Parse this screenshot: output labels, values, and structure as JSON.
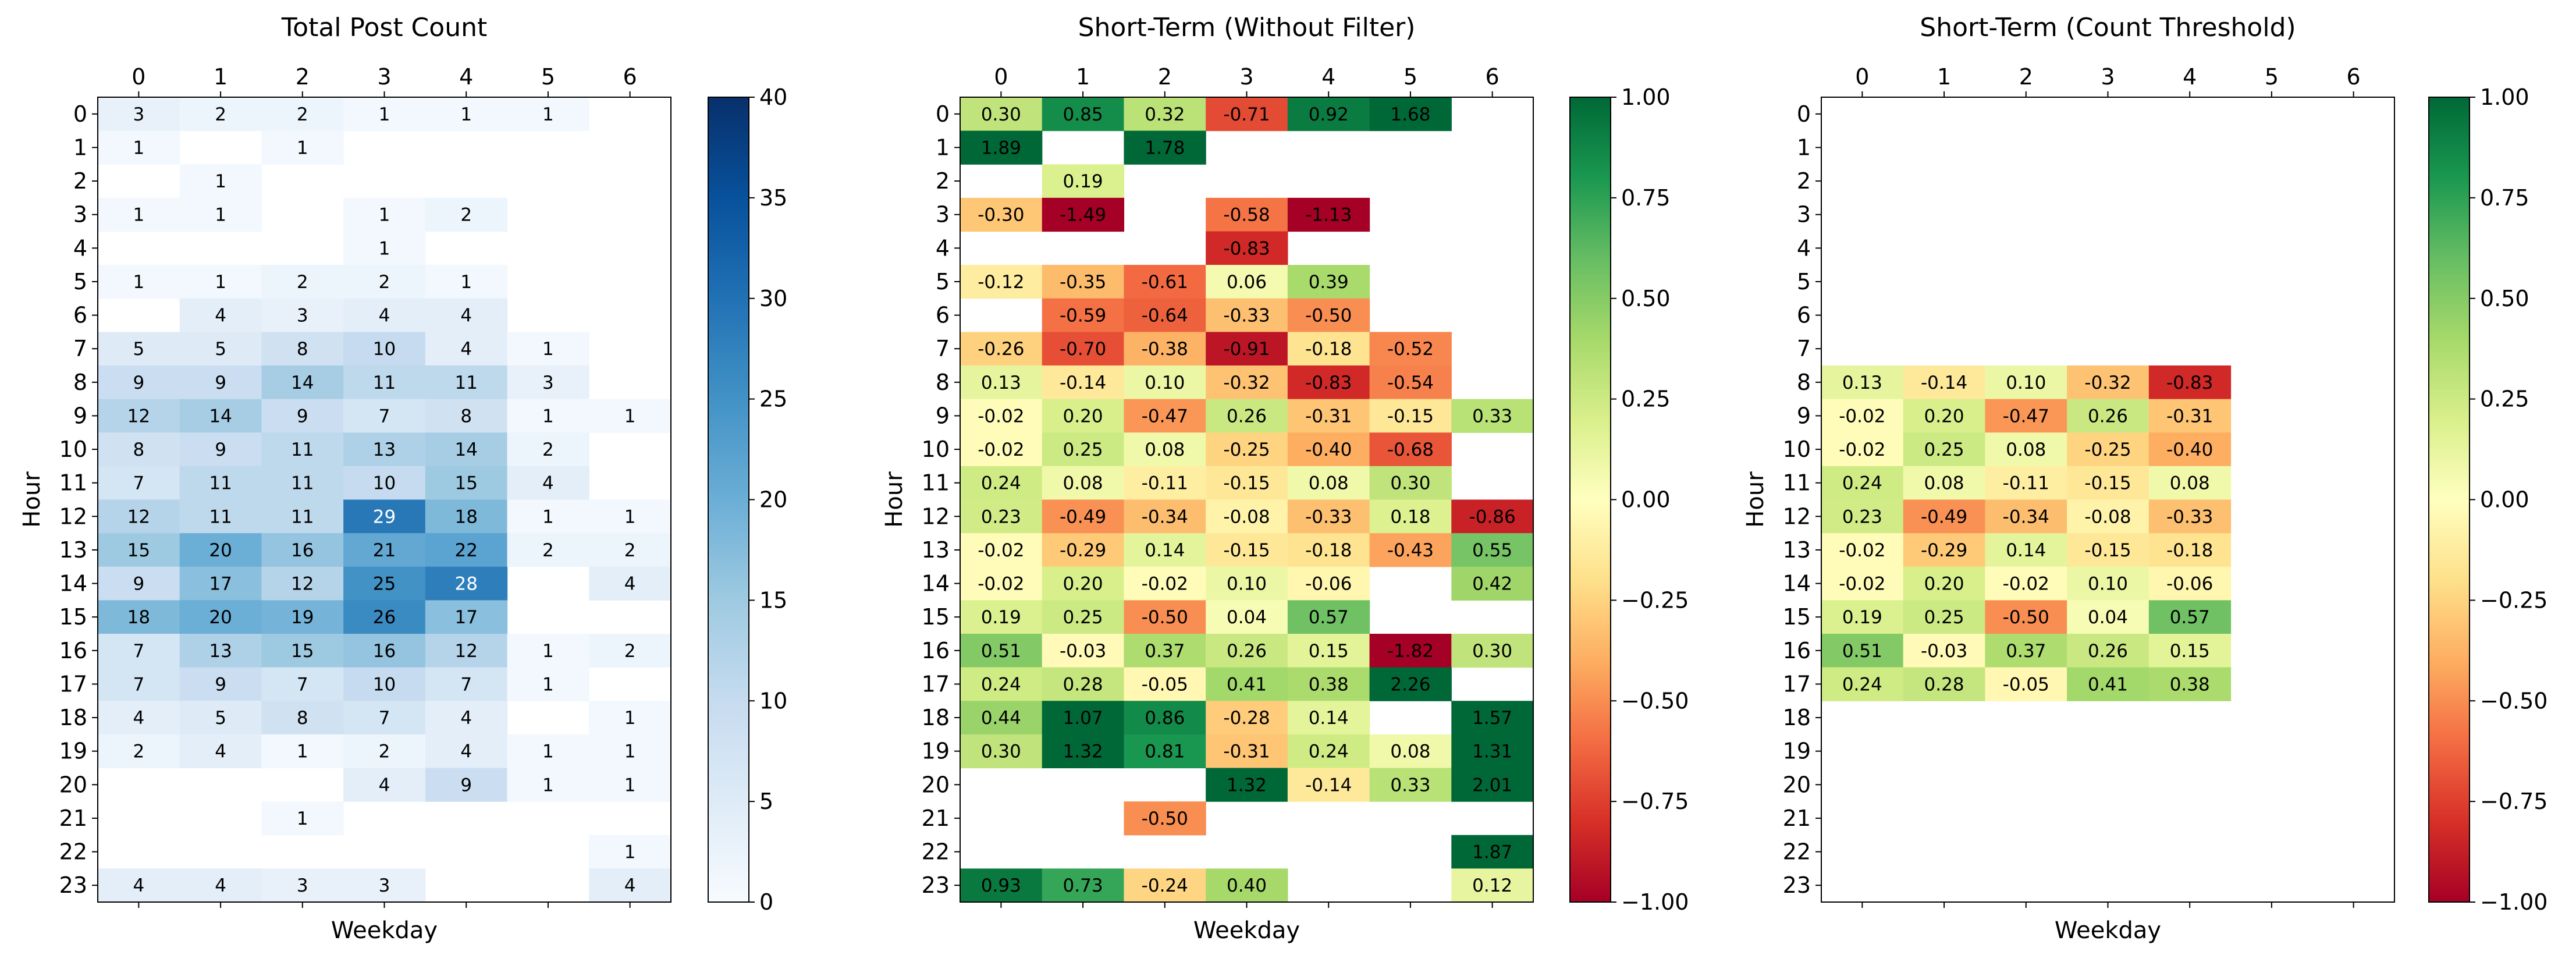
{
  "colors": {
    "blues": [
      "#f7fbff",
      "#deebf7",
      "#c6dbef",
      "#9ecae1",
      "#6baed6",
      "#4292c6",
      "#2171b5",
      "#08519c",
      "#08306b"
    ],
    "rdylgn": [
      "#a50026",
      "#d73027",
      "#f46d43",
      "#fdae61",
      "#fee08b",
      "#ffffbf",
      "#d9ef8b",
      "#a6d96a",
      "#66bd63",
      "#1a9850",
      "#006837"
    ]
  },
  "chart_data": [
    {
      "type": "heatmap",
      "title": "Total Post Count",
      "xlabel": "Weekday",
      "ylabel": "Hour",
      "x_ticks": [
        "0",
        "1",
        "2",
        "3",
        "4",
        "5",
        "6"
      ],
      "y_ticks": [
        "0",
        "1",
        "2",
        "3",
        "4",
        "5",
        "6",
        "7",
        "8",
        "9",
        "10",
        "11",
        "12",
        "13",
        "14",
        "15",
        "16",
        "17",
        "18",
        "19",
        "20",
        "21",
        "22",
        "23"
      ],
      "colormap": "Blues",
      "vmin": 0,
      "vmax": 40,
      "colorbar_ticks": [
        "0",
        "5",
        "10",
        "15",
        "20",
        "25",
        "30",
        "35",
        "40"
      ],
      "values": [
        [
          "3",
          "2",
          "2",
          "1",
          "1",
          "1",
          null
        ],
        [
          "1",
          null,
          "1",
          null,
          null,
          null,
          null
        ],
        [
          null,
          "1",
          null,
          null,
          null,
          null,
          null
        ],
        [
          "1",
          "1",
          null,
          "1",
          "2",
          null,
          null
        ],
        [
          null,
          null,
          null,
          "1",
          null,
          null,
          null
        ],
        [
          "1",
          "1",
          "2",
          "2",
          "1",
          null,
          null
        ],
        [
          null,
          "4",
          "3",
          "4",
          "4",
          null,
          null
        ],
        [
          "5",
          "5",
          "8",
          "10",
          "4",
          "1",
          null
        ],
        [
          "9",
          "9",
          "14",
          "11",
          "11",
          "3",
          null
        ],
        [
          "12",
          "14",
          "9",
          "7",
          "8",
          "1",
          "1"
        ],
        [
          "8",
          "9",
          "11",
          "13",
          "14",
          "2",
          null
        ],
        [
          "7",
          "11",
          "11",
          "10",
          "15",
          "4",
          null
        ],
        [
          "12",
          "11",
          "11",
          "29",
          "18",
          "1",
          "1"
        ],
        [
          "15",
          "20",
          "16",
          "21",
          "22",
          "2",
          "2"
        ],
        [
          "9",
          "17",
          "12",
          "25",
          "28",
          null,
          "4"
        ],
        [
          "18",
          "20",
          "19",
          "26",
          "17",
          null,
          null
        ],
        [
          "7",
          "13",
          "15",
          "16",
          "12",
          "1",
          "2"
        ],
        [
          "7",
          "9",
          "7",
          "10",
          "7",
          "1",
          null
        ],
        [
          "4",
          "5",
          "8",
          "7",
          "4",
          null,
          "1"
        ],
        [
          "2",
          "4",
          "1",
          "2",
          "4",
          "1",
          "1"
        ],
        [
          null,
          null,
          null,
          "4",
          "9",
          "1",
          "1"
        ],
        [
          null,
          null,
          "1",
          null,
          null,
          null,
          null
        ],
        [
          null,
          null,
          null,
          null,
          null,
          null,
          "1"
        ],
        [
          "4",
          "4",
          "3",
          "3",
          null,
          null,
          "4"
        ]
      ]
    },
    {
      "type": "heatmap",
      "title": "Short-Term (Without Filter)",
      "xlabel": "Weekday",
      "ylabel": "Hour",
      "x_ticks": [
        "0",
        "1",
        "2",
        "3",
        "4",
        "5",
        "6"
      ],
      "y_ticks": [
        "0",
        "1",
        "2",
        "3",
        "4",
        "5",
        "6",
        "7",
        "8",
        "9",
        "10",
        "11",
        "12",
        "13",
        "14",
        "15",
        "16",
        "17",
        "18",
        "19",
        "20",
        "21",
        "22",
        "23"
      ],
      "colormap": "RdYlGn",
      "vmin": -1,
      "vmax": 1,
      "colorbar_ticks": [
        "1.00",
        "0.75",
        "0.50",
        "0.25",
        "0.00",
        "−0.25",
        "−0.50",
        "−0.75",
        "−1.00"
      ],
      "values": [
        [
          "0.30",
          "0.85",
          "0.32",
          "-0.71",
          "0.92",
          "1.68",
          null
        ],
        [
          "1.89",
          null,
          "1.78",
          null,
          null,
          null,
          null
        ],
        [
          null,
          "0.19",
          null,
          null,
          null,
          null,
          null
        ],
        [
          "-0.30",
          "-1.49",
          null,
          "-0.58",
          "-1.13",
          null,
          null
        ],
        [
          null,
          null,
          null,
          "-0.83",
          null,
          null,
          null
        ],
        [
          "-0.12",
          "-0.35",
          "-0.61",
          "0.06",
          "0.39",
          null,
          null
        ],
        [
          null,
          "-0.59",
          "-0.64",
          "-0.33",
          "-0.50",
          null,
          null
        ],
        [
          "-0.26",
          "-0.70",
          "-0.38",
          "-0.91",
          "-0.18",
          "-0.52",
          null
        ],
        [
          "0.13",
          "-0.14",
          "0.10",
          "-0.32",
          "-0.83",
          "-0.54",
          null
        ],
        [
          "-0.02",
          "0.20",
          "-0.47",
          "0.26",
          "-0.31",
          "-0.15",
          "0.33"
        ],
        [
          "-0.02",
          "0.25",
          "0.08",
          "-0.25",
          "-0.40",
          "-0.68",
          null
        ],
        [
          "0.24",
          "0.08",
          "-0.11",
          "-0.15",
          "0.08",
          "0.30",
          null
        ],
        [
          "0.23",
          "-0.49",
          "-0.34",
          "-0.08",
          "-0.33",
          "0.18",
          "-0.86"
        ],
        [
          "-0.02",
          "-0.29",
          "0.14",
          "-0.15",
          "-0.18",
          "-0.43",
          "0.55"
        ],
        [
          "-0.02",
          "0.20",
          "-0.02",
          "0.10",
          "-0.06",
          null,
          "0.42"
        ],
        [
          "0.19",
          "0.25",
          "-0.50",
          "0.04",
          "0.57",
          null,
          null
        ],
        [
          "0.51",
          "-0.03",
          "0.37",
          "0.26",
          "0.15",
          "-1.82",
          "0.30"
        ],
        [
          "0.24",
          "0.28",
          "-0.05",
          "0.41",
          "0.38",
          "2.26",
          null
        ],
        [
          "0.44",
          "1.07",
          "0.86",
          "-0.28",
          "0.14",
          null,
          "1.57"
        ],
        [
          "0.30",
          "1.32",
          "0.81",
          "-0.31",
          "0.24",
          "0.08",
          "1.31"
        ],
        [
          null,
          null,
          null,
          "1.32",
          "-0.14",
          "0.33",
          "2.01"
        ],
        [
          null,
          null,
          "-0.50",
          null,
          null,
          null,
          null
        ],
        [
          null,
          null,
          null,
          null,
          null,
          null,
          "1.87"
        ],
        [
          "0.93",
          "0.73",
          "-0.24",
          "0.40",
          null,
          null,
          "0.12"
        ]
      ]
    },
    {
      "type": "heatmap",
      "title": "Short-Term (Count Threshold)",
      "xlabel": "Weekday",
      "ylabel": "Hour",
      "x_ticks": [
        "0",
        "1",
        "2",
        "3",
        "4",
        "5",
        "6"
      ],
      "y_ticks": [
        "0",
        "1",
        "2",
        "3",
        "4",
        "5",
        "6",
        "7",
        "8",
        "9",
        "10",
        "11",
        "12",
        "13",
        "14",
        "15",
        "16",
        "17",
        "18",
        "19",
        "20",
        "21",
        "22",
        "23"
      ],
      "colormap": "RdYlGn",
      "vmin": -1,
      "vmax": 1,
      "colorbar_ticks": [
        "1.00",
        "0.75",
        "0.50",
        "0.25",
        "0.00",
        "−0.25",
        "−0.50",
        "−0.75",
        "−1.00"
      ],
      "values": [
        [
          null,
          null,
          null,
          null,
          null,
          null,
          null
        ],
        [
          null,
          null,
          null,
          null,
          null,
          null,
          null
        ],
        [
          null,
          null,
          null,
          null,
          null,
          null,
          null
        ],
        [
          null,
          null,
          null,
          null,
          null,
          null,
          null
        ],
        [
          null,
          null,
          null,
          null,
          null,
          null,
          null
        ],
        [
          null,
          null,
          null,
          null,
          null,
          null,
          null
        ],
        [
          null,
          null,
          null,
          null,
          null,
          null,
          null
        ],
        [
          null,
          null,
          null,
          null,
          null,
          null,
          null
        ],
        [
          "0.13",
          "-0.14",
          "0.10",
          "-0.32",
          "-0.83",
          null,
          null
        ],
        [
          "-0.02",
          "0.20",
          "-0.47",
          "0.26",
          "-0.31",
          null,
          null
        ],
        [
          "-0.02",
          "0.25",
          "0.08",
          "-0.25",
          "-0.40",
          null,
          null
        ],
        [
          "0.24",
          "0.08",
          "-0.11",
          "-0.15",
          "0.08",
          null,
          null
        ],
        [
          "0.23",
          "-0.49",
          "-0.34",
          "-0.08",
          "-0.33",
          null,
          null
        ],
        [
          "-0.02",
          "-0.29",
          "0.14",
          "-0.15",
          "-0.18",
          null,
          null
        ],
        [
          "-0.02",
          "0.20",
          "-0.02",
          "0.10",
          "-0.06",
          null,
          null
        ],
        [
          "0.19",
          "0.25",
          "-0.50",
          "0.04",
          "0.57",
          null,
          null
        ],
        [
          "0.51",
          "-0.03",
          "0.37",
          "0.26",
          "0.15",
          null,
          null
        ],
        [
          "0.24",
          "0.28",
          "-0.05",
          "0.41",
          "0.38",
          null,
          null
        ],
        [
          null,
          null,
          null,
          null,
          null,
          null,
          null
        ],
        [
          null,
          null,
          null,
          null,
          null,
          null,
          null
        ],
        [
          null,
          null,
          null,
          null,
          null,
          null,
          null
        ],
        [
          null,
          null,
          null,
          null,
          null,
          null,
          null
        ],
        [
          null,
          null,
          null,
          null,
          null,
          null,
          null
        ],
        [
          null,
          null,
          null,
          null,
          null,
          null,
          null
        ]
      ]
    }
  ]
}
